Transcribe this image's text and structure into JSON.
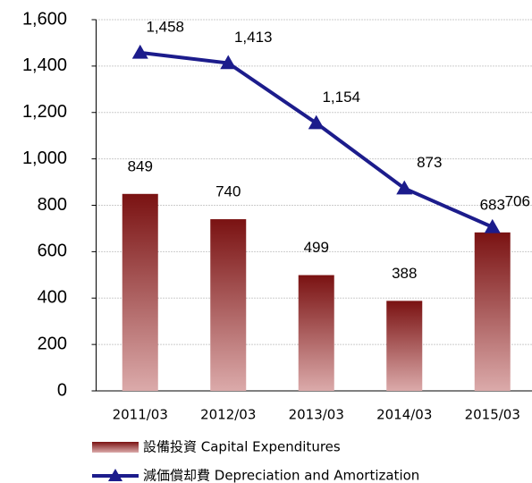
{
  "chart_data": {
    "type": "bar",
    "categories": [
      "2011/03",
      "2012/03",
      "2013/03",
      "2014/03",
      "2015/03"
    ],
    "series": [
      {
        "name": "設備投資 Capital Expenditures",
        "type": "bar",
        "color": "#7a1212",
        "values": [
          849,
          740,
          499,
          388,
          683
        ]
      },
      {
        "name": "減価償却費 Depreciation and Amortization",
        "type": "line",
        "color": "#1c1c8c",
        "values": [
          1458,
          1413,
          1154,
          873,
          706
        ],
        "value_labels": [
          "1,458",
          "1,413",
          "1,154",
          "873",
          "706"
        ]
      }
    ],
    "ylim": [
      0,
      1600
    ],
    "yticks": [
      0,
      200,
      400,
      600,
      800,
      {
        "value": 1000,
        "label": "1,000"
      },
      {
        "value": 1200,
        "label": "1,200"
      },
      {
        "value": 1400,
        "label": "1,400"
      },
      {
        "value": 1600,
        "label": "1,600"
      }
    ],
    "grid": true
  }
}
